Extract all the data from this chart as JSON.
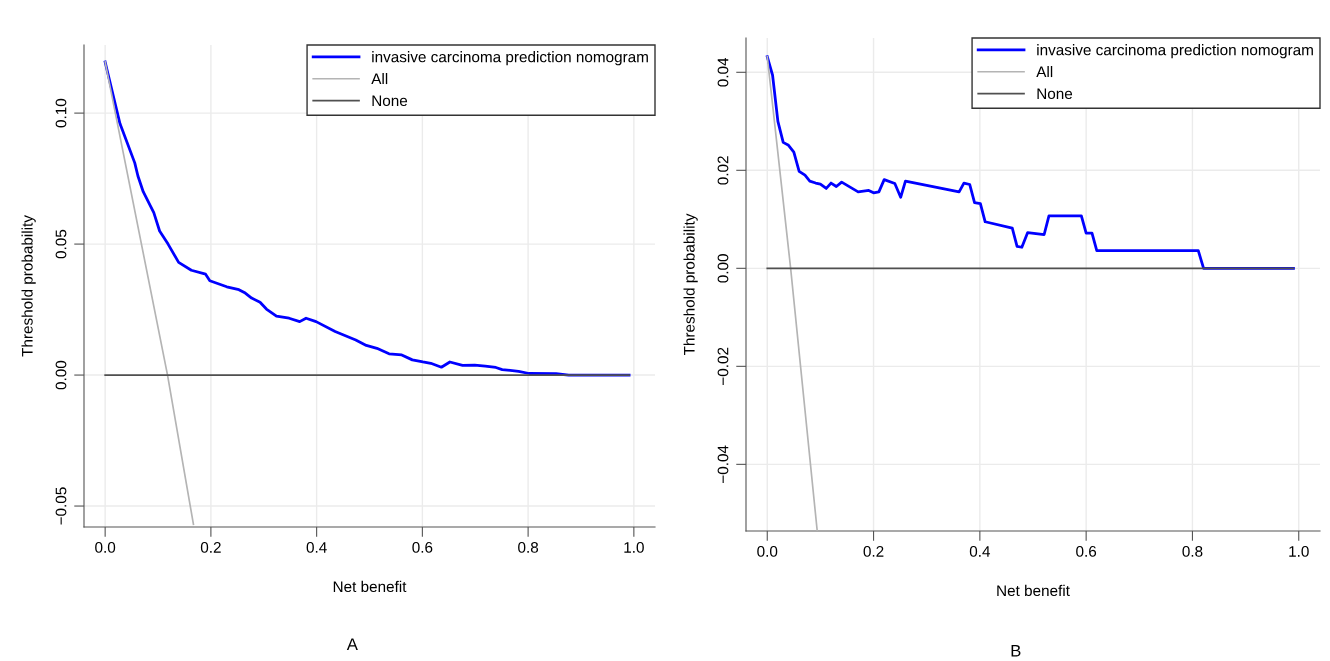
{
  "chart_data": [
    {
      "type": "line",
      "xlabel": "Net benefit",
      "ylabel": "Threshold probability",
      "annotations": [
        "A"
      ],
      "xlim": [
        -0.04,
        1.04
      ],
      "ylim": [
        -0.058,
        0.126
      ],
      "xticks": [
        {
          "value": 0,
          "label": "0.0"
        },
        {
          "value": 0.2,
          "label": "0.2"
        },
        {
          "value": 0.4,
          "label": "0.4"
        },
        {
          "value": 0.6,
          "label": "0.6"
        },
        {
          "value": 0.8,
          "label": "0.8"
        },
        {
          "value": 1,
          "label": "1.0"
        }
      ],
      "yticks": [
        {
          "value": -0.05,
          "label": "−0.05"
        },
        {
          "value": 0,
          "label": "0.00"
        },
        {
          "value": 0.05,
          "label": "0.05"
        },
        {
          "value": 0.1,
          "label": "0.10"
        }
      ],
      "grid": true,
      "legend": "top right",
      "series": [
        {
          "name": "invasive carcinoma prediction nomogram",
          "color": "#0000ff",
          "x": [
            0,
            0.028,
            0.056,
            0.062,
            0.072,
            0.092,
            0.103,
            0.119,
            0.139,
            0.163,
            0.19,
            0.198,
            0.23,
            0.253,
            0.265,
            0.277,
            0.293,
            0.305,
            0.324,
            0.348,
            0.368,
            0.38,
            0.399,
            0.435,
            0.474,
            0.494,
            0.514,
            0.537,
            0.561,
            0.581,
            0.601,
            0.616,
            0.636,
            0.652,
            0.676,
            0.699,
            0.719,
            0.739,
            0.751,
            0.782,
            0.802,
            0.853,
            0.877,
            0.991
          ],
          "values": [
            0.1195,
            0.096,
            0.081,
            0.076,
            0.07,
            0.062,
            0.055,
            0.05,
            0.043,
            0.04,
            0.0385,
            0.036,
            0.0337,
            0.0326,
            0.0313,
            0.0294,
            0.0278,
            0.0252,
            0.0225,
            0.0217,
            0.0204,
            0.0217,
            0.0204,
            0.0166,
            0.0134,
            0.0113,
            0.0102,
            0.0081,
            0.0077,
            0.0058,
            0.005,
            0.0045,
            0.003,
            0.005,
            0.0037,
            0.0038,
            0.0034,
            0.0029,
            0.0021,
            0.0014,
            0.0006,
            0.0005,
            0,
            0
          ]
        },
        {
          "name": "All",
          "color": "#b4b4b4",
          "x": [
            0,
            0.118,
            0.167
          ],
          "values": [
            0.1195,
            0,
            -0.057
          ]
        },
        {
          "name": "None",
          "color": "#505050",
          "x": [
            0,
            0.991
          ],
          "values": [
            0,
            0
          ]
        }
      ]
    },
    {
      "type": "line",
      "xlabel": "Net benefit",
      "ylabel": "Threshold probability",
      "annotations": [
        "B"
      ],
      "xlim": [
        -0.04,
        1.04
      ],
      "ylim": [
        -0.0536,
        0.047
      ],
      "xticks": [
        {
          "value": 0,
          "label": "0.0"
        },
        {
          "value": 0.2,
          "label": "0.2"
        },
        {
          "value": 0.4,
          "label": "0.4"
        },
        {
          "value": 0.6,
          "label": "0.6"
        },
        {
          "value": 0.8,
          "label": "0.8"
        },
        {
          "value": 1,
          "label": "1.0"
        }
      ],
      "yticks": [
        {
          "value": -0.04,
          "label": "−0.04"
        },
        {
          "value": -0.02,
          "label": "−0.02"
        },
        {
          "value": 0,
          "label": "0.00"
        },
        {
          "value": 0.02,
          "label": "0.02"
        },
        {
          "value": 0.04,
          "label": "0.04"
        }
      ],
      "grid": true,
      "legend": "top right",
      "series": [
        {
          "name": "invasive carcinoma prediction nomogram",
          "color": "#0000ff",
          "x": [
            0,
            0.01,
            0.02,
            0.03,
            0.04,
            0.05,
            0.06,
            0.071,
            0.08,
            0.091,
            0.1,
            0.111,
            0.12,
            0.13,
            0.14,
            0.171,
            0.191,
            0.2,
            0.21,
            0.22,
            0.24,
            0.251,
            0.26,
            0.361,
            0.37,
            0.381,
            0.39,
            0.401,
            0.41,
            0.461,
            0.47,
            0.479,
            0.49,
            0.521,
            0.53,
            0.591,
            0.6,
            0.611,
            0.62,
            0.811,
            0.821,
            0.99
          ],
          "values": [
            0.0432,
            0.0394,
            0.03,
            0.0257,
            0.0251,
            0.0237,
            0.0198,
            0.019,
            0.0178,
            0.0174,
            0.0172,
            0.0163,
            0.0174,
            0.0167,
            0.0176,
            0.0156,
            0.0159,
            0.0154,
            0.0156,
            0.0181,
            0.0173,
            0.0145,
            0.0178,
            0.0156,
            0.0174,
            0.0171,
            0.0134,
            0.0132,
            0.0095,
            0.0082,
            0.0045,
            0.0043,
            0.0073,
            0.0069,
            0.0107,
            0.0107,
            0.0072,
            0.0072,
            0.0036,
            0.0036,
            0,
            0
          ]
        },
        {
          "name": "All",
          "color": "#b4b4b4",
          "x": [
            0,
            0.044,
            0.094
          ],
          "values": [
            0.0432,
            0,
            -0.0536
          ]
        },
        {
          "name": "None",
          "color": "#505050",
          "x": [
            0,
            0.99
          ],
          "values": [
            0,
            0
          ]
        }
      ]
    }
  ]
}
